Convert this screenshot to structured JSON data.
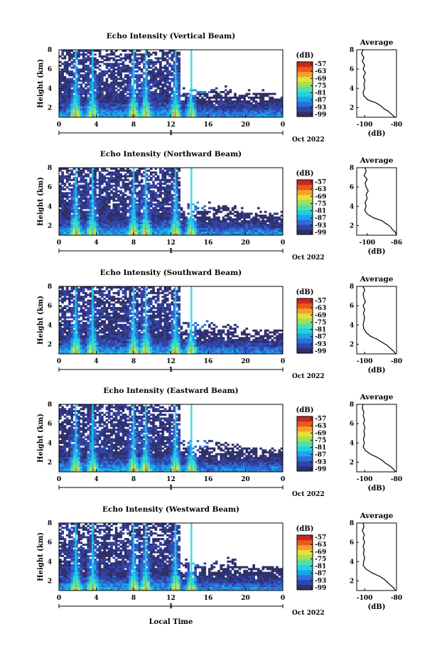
{
  "figure": {
    "x_axis_label": "Local Time",
    "colors": [
      "#30306a",
      "#3344a8",
      "#2b6fd8",
      "#1aa6e6",
      "#22d0e0",
      "#52e0a8",
      "#9ee05a",
      "#e6e03a",
      "#f6a02a",
      "#ea5a1e",
      "#c8281e"
    ],
    "blank_color": "#ffffff"
  },
  "chart_data": [
    {
      "type": "heatmap",
      "title": "Echo Intensity (Vertical Beam)",
      "ylabel": "Height (km)",
      "xlim": [
        0,
        24
      ],
      "ylim": [
        1,
        8
      ],
      "x_ticks": [
        "0",
        "4",
        "8",
        "12",
        "16",
        "20",
        "0"
      ],
      "y_ticks": [
        "8",
        "6",
        "4",
        "2"
      ],
      "date_marker": "1",
      "date_label": "Oct 2022",
      "colorbar": {
        "unit": "(dB)",
        "ticks": [
          "-57",
          "-63",
          "-69",
          "-75",
          "-81",
          "-87",
          "-93",
          "-99"
        ]
      },
      "profile": {
        "title": "Average",
        "xlabel": "(dB)",
        "x_ticks": [
          "-100",
          "-80"
        ],
        "y_ticks": [
          "8",
          "6",
          "4",
          "2"
        ],
        "points": [
          [
            -101,
            8
          ],
          [
            -102,
            7.6
          ],
          [
            -100.5,
            7.2
          ],
          [
            -101.5,
            6.8
          ],
          [
            -100,
            6.4
          ],
          [
            -101,
            6.0
          ],
          [
            -99.5,
            5.6
          ],
          [
            -100.8,
            5.2
          ],
          [
            -99.8,
            4.8
          ],
          [
            -100.5,
            4.4
          ],
          [
            -100,
            4.0
          ],
          [
            -101,
            3.6
          ],
          [
            -100.5,
            3.2
          ],
          [
            -98,
            2.8
          ],
          [
            -93,
            2.5
          ],
          [
            -90,
            2.2
          ],
          [
            -88,
            1.9
          ],
          [
            -85,
            1.6
          ],
          [
            -83,
            1.3
          ],
          [
            -81,
            1.0
          ]
        ]
      }
    },
    {
      "type": "heatmap",
      "title": "Echo Intensity (Northward Beam)",
      "ylabel": "Height (km)",
      "xlim": [
        0,
        24
      ],
      "ylim": [
        1,
        8
      ],
      "x_ticks": [
        "0",
        "4",
        "8",
        "12",
        "16",
        "20",
        "0"
      ],
      "y_ticks": [
        "8",
        "6",
        "4",
        "2"
      ],
      "date_marker": "1",
      "date_label": "Oct 2022",
      "colorbar": {
        "unit": "(dB)",
        "ticks": [
          "-57",
          "-63",
          "-69",
          "-75",
          "-81",
          "-87",
          "-93",
          "-99"
        ]
      },
      "profile": {
        "title": "Average",
        "xlabel": "(dB)",
        "x_ticks": [
          "-100",
          "-86"
        ],
        "y_ticks": [
          "8",
          "6",
          "4",
          "2"
        ],
        "points": [
          [
            -101,
            8
          ],
          [
            -100.5,
            7.6
          ],
          [
            -101.5,
            7.2
          ],
          [
            -100,
            6.8
          ],
          [
            -101,
            6.4
          ],
          [
            -100.5,
            6.0
          ],
          [
            -99.5,
            5.6
          ],
          [
            -100.5,
            5.2
          ],
          [
            -100,
            4.8
          ],
          [
            -101,
            4.4
          ],
          [
            -100.5,
            4.0
          ],
          [
            -101.2,
            3.6
          ],
          [
            -100,
            3.2
          ],
          [
            -97,
            2.8
          ],
          [
            -93,
            2.5
          ],
          [
            -91,
            2.2
          ],
          [
            -89,
            1.9
          ],
          [
            -88,
            1.6
          ],
          [
            -86.5,
            1.3
          ],
          [
            -86,
            1.0
          ]
        ]
      }
    },
    {
      "type": "heatmap",
      "title": "Echo Intensity (Southward Beam)",
      "ylabel": "Height (km)",
      "xlim": [
        0,
        24
      ],
      "ylim": [
        1,
        8
      ],
      "x_ticks": [
        "0",
        "4",
        "8",
        "12",
        "16",
        "20",
        "0"
      ],
      "y_ticks": [
        "8",
        "6",
        "4",
        "2"
      ],
      "date_marker": "1",
      "date_label": "Oct 2022",
      "colorbar": {
        "unit": "(dB)",
        "ticks": [
          "-57",
          "-63",
          "-69",
          "-75",
          "-81",
          "-87",
          "-93",
          "-99"
        ]
      },
      "profile": {
        "title": "Average",
        "xlabel": "(dB)",
        "x_ticks": [
          "-100",
          "-80"
        ],
        "y_ticks": [
          "8",
          "6",
          "4",
          "2"
        ],
        "points": [
          [
            -101,
            8
          ],
          [
            -100,
            7.6
          ],
          [
            -101,
            7.2
          ],
          [
            -100.5,
            6.8
          ],
          [
            -99.5,
            6.4
          ],
          [
            -101,
            6.0
          ],
          [
            -100,
            5.6
          ],
          [
            -100.8,
            5.2
          ],
          [
            -100,
            4.8
          ],
          [
            -100.5,
            4.4
          ],
          [
            -101,
            4.0
          ],
          [
            -100.5,
            3.6
          ],
          [
            -99,
            3.2
          ],
          [
            -96,
            2.8
          ],
          [
            -92,
            2.5
          ],
          [
            -89,
            2.2
          ],
          [
            -86,
            1.9
          ],
          [
            -84,
            1.6
          ],
          [
            -82,
            1.3
          ],
          [
            -80.5,
            1.0
          ]
        ]
      }
    },
    {
      "type": "heatmap",
      "title": "Echo Intensity (Eastward Beam)",
      "ylabel": "Height (km)",
      "xlim": [
        0,
        24
      ],
      "ylim": [
        1,
        8
      ],
      "x_ticks": [
        "0",
        "4",
        "8",
        "12",
        "16",
        "20",
        "0"
      ],
      "y_ticks": [
        "8",
        "6",
        "4",
        "2"
      ],
      "date_marker": "1",
      "date_label": "Oct 2022",
      "colorbar": {
        "unit": "(dB)",
        "ticks": [
          "-57",
          "-63",
          "-69",
          "-75",
          "-81",
          "-87",
          "-93",
          "-99"
        ]
      },
      "profile": {
        "title": "Average",
        "xlabel": "(dB)",
        "x_ticks": [
          "-100",
          "-80"
        ],
        "y_ticks": [
          "8",
          "6",
          "4",
          "2"
        ],
        "points": [
          [
            -101,
            8
          ],
          [
            -101.5,
            7.6
          ],
          [
            -100.5,
            7.2
          ],
          [
            -101,
            6.8
          ],
          [
            -100,
            6.4
          ],
          [
            -100.8,
            6.0
          ],
          [
            -99.8,
            5.6
          ],
          [
            -100.5,
            5.2
          ],
          [
            -100,
            4.8
          ],
          [
            -100.8,
            4.4
          ],
          [
            -100.2,
            4.0
          ],
          [
            -101,
            3.6
          ],
          [
            -99.5,
            3.2
          ],
          [
            -96,
            2.8
          ],
          [
            -92,
            2.5
          ],
          [
            -89,
            2.2
          ],
          [
            -87,
            1.9
          ],
          [
            -84,
            1.6
          ],
          [
            -82,
            1.3
          ],
          [
            -80.5,
            1.0
          ]
        ]
      }
    },
    {
      "type": "heatmap",
      "title": "Echo Intensity (Westward Beam)",
      "ylabel": "Height (km)",
      "xlim": [
        0,
        24
      ],
      "ylim": [
        1,
        8
      ],
      "x_ticks": [
        "0",
        "4",
        "8",
        "12",
        "16",
        "20",
        "0"
      ],
      "y_ticks": [
        "8",
        "6",
        "4",
        "2"
      ],
      "date_marker": "1",
      "date_label": "Oct 2022",
      "colorbar": {
        "unit": "(dB)",
        "ticks": [
          "-57",
          "-63",
          "-69",
          "-75",
          "-81",
          "-87",
          "-93",
          "-99"
        ]
      },
      "profile": {
        "title": "Average",
        "xlabel": "(dB)",
        "x_ticks": [
          "-100",
          "-80"
        ],
        "y_ticks": [
          "8",
          "6",
          "4",
          "2"
        ],
        "points": [
          [
            -101,
            8
          ],
          [
            -100.5,
            7.6
          ],
          [
            -101.5,
            7.2
          ],
          [
            -100.2,
            6.8
          ],
          [
            -101,
            6.4
          ],
          [
            -100,
            6.0
          ],
          [
            -101,
            5.6
          ],
          [
            -100.3,
            5.2
          ],
          [
            -100.8,
            4.8
          ],
          [
            -100,
            4.4
          ],
          [
            -100.6,
            4.0
          ],
          [
            -101,
            3.6
          ],
          [
            -99,
            3.2
          ],
          [
            -95,
            2.8
          ],
          [
            -91,
            2.5
          ],
          [
            -88,
            2.2
          ],
          [
            -86,
            1.9
          ],
          [
            -84,
            1.6
          ],
          [
            -82,
            1.3
          ],
          [
            -80.5,
            1.0
          ]
        ]
      }
    }
  ]
}
